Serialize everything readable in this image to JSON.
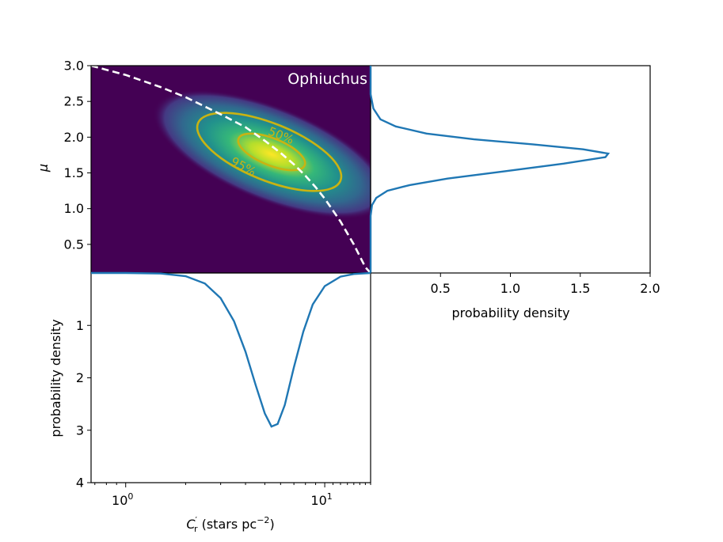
{
  "chart_data": [
    {
      "panel": "joint",
      "type": "heatmap",
      "annotation": "Ophiuchus",
      "xscale": "log",
      "xlim": [
        0.67,
        17.0
      ],
      "ylim": [
        0.1,
        3.0
      ],
      "ylabel": "μ",
      "yticks": [
        "0.5",
        "1.0",
        "1.5",
        "2.0",
        "2.5",
        "3.0"
      ],
      "colormap": "viridis",
      "peak": {
        "x": 5.4,
        "y": 1.75
      },
      "contours": [
        {
          "label": "50%",
          "color": "#c9b312"
        },
        {
          "label": "95%",
          "color": "#c9b312"
        }
      ],
      "boundary_curve": {
        "style": "dashed",
        "color": "#ffffff",
        "x": [
          0.67,
          1.0,
          1.5,
          2.0,
          3.0,
          4.0,
          5.0,
          6.0,
          7.0,
          8.0,
          9.0,
          10.0,
          12.0,
          14.0,
          16.0,
          17.0
        ],
        "y": [
          3.0,
          2.87,
          2.7,
          2.56,
          2.32,
          2.14,
          1.95,
          1.78,
          1.62,
          1.46,
          1.3,
          1.14,
          0.82,
          0.5,
          0.18,
          0.1
        ]
      }
    },
    {
      "panel": "mu-marginal",
      "type": "line",
      "xlabel": "probability density",
      "xlim": [
        0,
        2.0
      ],
      "xticks": [
        "0.5",
        "1.0",
        "1.5",
        "2.0"
      ],
      "series": [
        {
          "color": "#1f77b4",
          "x": [
            0.0,
            0.0,
            0.0,
            0.01,
            0.04,
            0.12,
            0.28,
            0.55,
            0.95,
            1.38,
            1.68,
            1.7,
            1.52,
            1.16,
            0.74,
            0.4,
            0.18,
            0.07,
            0.02,
            0.0,
            0.0
          ],
          "y": [
            0.1,
            0.6,
            0.9,
            1.05,
            1.15,
            1.25,
            1.33,
            1.42,
            1.52,
            1.63,
            1.72,
            1.77,
            1.83,
            1.9,
            1.97,
            2.05,
            2.15,
            2.25,
            2.4,
            2.6,
            3.0
          ]
        }
      ]
    },
    {
      "panel": "C-marginal",
      "type": "line",
      "xlabel": "C'r (stars pc−2)",
      "ylabel": "probability density",
      "xscale": "log",
      "xlim": [
        0.67,
        17.0
      ],
      "xticks": [
        {
          "base": "10",
          "exp": "0",
          "value": 1
        },
        {
          "base": "10",
          "exp": "1",
          "value": 10
        }
      ],
      "ylim": [
        4,
        0
      ],
      "yticks": [
        "1",
        "2",
        "3",
        "4"
      ],
      "series": [
        {
          "color": "#1f77b4",
          "x": [
            0.67,
            1.0,
            1.5,
            2.0,
            2.5,
            3.0,
            3.5,
            4.0,
            4.5,
            5.0,
            5.4,
            5.8,
            6.3,
            7.0,
            7.8,
            8.7,
            10.0,
            12.0,
            14.0,
            17.0
          ],
          "y": [
            0.0,
            0.0,
            0.01,
            0.06,
            0.2,
            0.48,
            0.92,
            1.5,
            2.14,
            2.68,
            2.93,
            2.88,
            2.52,
            1.8,
            1.12,
            0.6,
            0.25,
            0.07,
            0.02,
            0.0
          ]
        }
      ]
    }
  ]
}
